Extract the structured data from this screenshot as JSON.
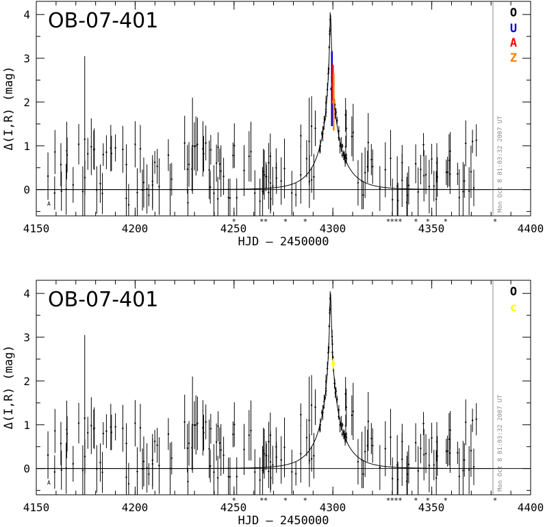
{
  "chart_data": [
    {
      "type": "scatter",
      "title": "OB-07-401",
      "xlabel": "HJD – 2450000",
      "ylabel": "Δ(I,R) (mag)",
      "xlim": [
        4150,
        4400
      ],
      "ylim": [
        -0.6,
        4.3
      ],
      "x_ticks": [
        4150,
        4200,
        4250,
        4300,
        4350,
        4400
      ],
      "y_ticks": [
        0,
        1,
        2,
        3,
        4
      ],
      "stamp": "Mon Oct  8 01:03:32 2007 UT",
      "corner_mark": "A",
      "legend": [
        {
          "label": "O",
          "color": "#000000"
        },
        {
          "label": "U",
          "color": "#0000dd"
        },
        {
          "label": "A",
          "color": "#ff0000"
        },
        {
          "label": "Z",
          "color": "#ff8000"
        }
      ],
      "model": {
        "t0": 4298.8,
        "u0": 0.025,
        "tE": 12.5
      },
      "extra_points": [
        {
          "series": "U",
          "x": 4299.5,
          "y": 2.3,
          "err": 0.85
        },
        {
          "series": "A",
          "x": 4300.0,
          "y": 2.4,
          "err": 0.45
        },
        {
          "series": "Z",
          "x": 4300.4,
          "y": 2.0,
          "err": 0.65
        }
      ],
      "star_marks_x": [
        4250,
        4264,
        4266,
        4276,
        4286,
        4328,
        4330,
        4332,
        4334,
        4342,
        4348,
        4357,
        4382
      ]
    },
    {
      "type": "scatter",
      "title": "OB-07-401",
      "xlabel": "HJD – 2450000",
      "ylabel": "Δ(I,R) (mag)",
      "xlim": [
        4150,
        4400
      ],
      "ylim": [
        -0.6,
        4.3
      ],
      "x_ticks": [
        4150,
        4200,
        4250,
        4300,
        4350,
        4400
      ],
      "y_ticks": [
        0,
        1,
        2,
        3,
        4
      ],
      "stamp": "Mon Oct  8 01:03:32 2007 UT",
      "corner_mark": "A",
      "legend": [
        {
          "label": "O",
          "color": "#000000"
        },
        {
          "label": "c",
          "color": "#ffff00"
        }
      ],
      "model": {
        "t0": 4298.8,
        "u0": 0.025,
        "tE": 12.5
      },
      "extra_points": [
        {
          "series": "c",
          "x": 4300.2,
          "y": 2.4,
          "err": 0.12
        }
      ],
      "star_marks_x": [
        4250,
        4264,
        4266,
        4276,
        4286,
        4328,
        4330,
        4332,
        4334,
        4342,
        4348,
        4357,
        4382
      ]
    }
  ]
}
